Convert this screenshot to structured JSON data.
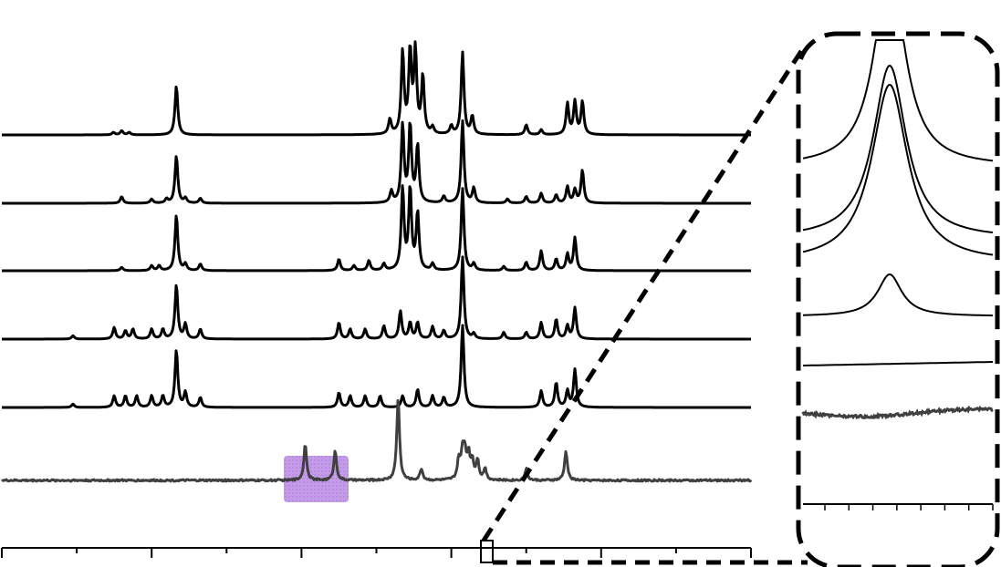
{
  "chart_data": {
    "type": "line",
    "title": "",
    "xlabel": "",
    "ylabel": "",
    "grid": false,
    "legend": "none",
    "x_ticks_major": 6,
    "x_ticks_minor": 5,
    "colors": {
      "trace": "#000000",
      "bottom_trace": "#404040",
      "highlight": "#a050d8",
      "inset_border": "#000000"
    },
    "series": [
      {
        "peaks": [
          [
            0.149,
            3
          ],
          [
            0.16,
            5
          ],
          [
            0.17,
            3
          ],
          [
            0.233,
            60
          ],
          [
            0.518,
            18
          ],
          [
            0.535,
            100
          ],
          [
            0.545,
            100
          ],
          [
            0.552,
            100
          ],
          [
            0.562,
            70
          ],
          [
            0.575,
            8
          ],
          [
            0.6,
            10
          ],
          [
            0.615,
            100
          ],
          [
            0.628,
            22
          ],
          [
            0.7,
            12
          ],
          [
            0.72,
            6
          ],
          [
            0.755,
            38
          ],
          [
            0.765,
            40
          ],
          [
            0.775,
            40
          ]
        ]
      },
      {
        "peaks": [
          [
            0.16,
            8
          ],
          [
            0.2,
            5
          ],
          [
            0.22,
            5
          ],
          [
            0.233,
            58
          ],
          [
            0.245,
            6
          ],
          [
            0.265,
            6
          ],
          [
            0.52,
            14
          ],
          [
            0.535,
            95
          ],
          [
            0.545,
            95
          ],
          [
            0.555,
            70
          ],
          [
            0.59,
            8
          ],
          [
            0.615,
            100
          ],
          [
            0.63,
            18
          ],
          [
            0.675,
            5
          ],
          [
            0.7,
            8
          ],
          [
            0.72,
            12
          ],
          [
            0.74,
            10
          ],
          [
            0.755,
            20
          ],
          [
            0.765,
            16
          ],
          [
            0.775,
            40
          ]
        ]
      },
      {
        "peaks": [
          [
            0.16,
            4
          ],
          [
            0.2,
            6
          ],
          [
            0.21,
            6
          ],
          [
            0.233,
            68
          ],
          [
            0.245,
            8
          ],
          [
            0.265,
            8
          ],
          [
            0.45,
            14
          ],
          [
            0.47,
            6
          ],
          [
            0.49,
            12
          ],
          [
            0.51,
            8
          ],
          [
            0.535,
            100
          ],
          [
            0.545,
            100
          ],
          [
            0.555,
            70
          ],
          [
            0.575,
            8
          ],
          [
            0.615,
            100
          ],
          [
            0.63,
            8
          ],
          [
            0.67,
            5
          ],
          [
            0.7,
            10
          ],
          [
            0.72,
            24
          ],
          [
            0.74,
            14
          ],
          [
            0.755,
            20
          ],
          [
            0.765,
            40
          ]
        ]
      },
      {
        "peaks": [
          [
            0.095,
            4
          ],
          [
            0.15,
            14
          ],
          [
            0.165,
            10
          ],
          [
            0.175,
            12
          ],
          [
            0.2,
            12
          ],
          [
            0.215,
            12
          ],
          [
            0.233,
            66
          ],
          [
            0.245,
            18
          ],
          [
            0.265,
            12
          ],
          [
            0.45,
            20
          ],
          [
            0.465,
            12
          ],
          [
            0.485,
            12
          ],
          [
            0.51,
            16
          ],
          [
            0.532,
            34
          ],
          [
            0.545,
            20
          ],
          [
            0.555,
            20
          ],
          [
            0.575,
            15
          ],
          [
            0.59,
            10
          ],
          [
            0.615,
            100
          ],
          [
            0.63,
            6
          ],
          [
            0.67,
            8
          ],
          [
            0.7,
            8
          ],
          [
            0.72,
            20
          ],
          [
            0.74,
            24
          ],
          [
            0.755,
            16
          ],
          [
            0.765,
            38
          ]
        ]
      },
      {
        "peaks": [
          [
            0.095,
            4
          ],
          [
            0.15,
            14
          ],
          [
            0.165,
            14
          ],
          [
            0.18,
            14
          ],
          [
            0.2,
            14
          ],
          [
            0.215,
            14
          ],
          [
            0.233,
            70
          ],
          [
            0.245,
            18
          ],
          [
            0.265,
            12
          ],
          [
            0.45,
            18
          ],
          [
            0.465,
            14
          ],
          [
            0.485,
            14
          ],
          [
            0.505,
            14
          ],
          [
            0.535,
            14
          ],
          [
            0.555,
            22
          ],
          [
            0.575,
            14
          ],
          [
            0.59,
            12
          ],
          [
            0.615,
            100
          ],
          [
            0.72,
            20
          ],
          [
            0.74,
            30
          ],
          [
            0.755,
            20
          ],
          [
            0.765,
            46
          ]
        ]
      },
      {
        "peaks": [
          [
            0.405,
            44
          ],
          [
            0.445,
            36
          ],
          [
            0.529,
            100
          ],
          [
            0.56,
            14
          ],
          [
            0.61,
            24
          ],
          [
            0.615,
            30
          ],
          [
            0.618,
            30
          ],
          [
            0.623,
            30
          ],
          [
            0.628,
            22
          ],
          [
            0.635,
            24
          ],
          [
            0.645,
            14
          ],
          [
            0.7,
            14
          ],
          [
            0.753,
            36
          ]
        ]
      }
    ],
    "inset": {
      "series_count": 6,
      "x_ticks": 8
    }
  }
}
